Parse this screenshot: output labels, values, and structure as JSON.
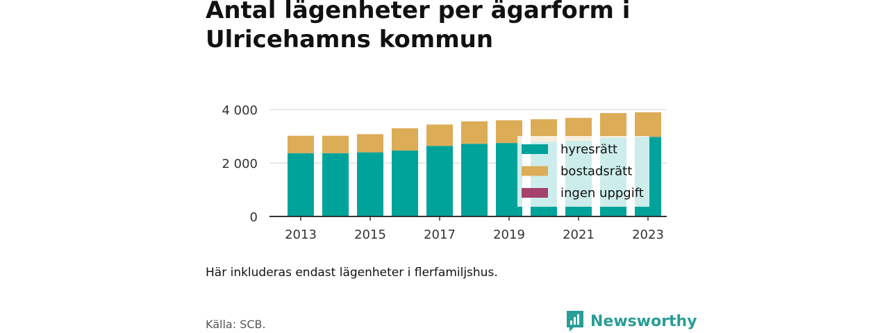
{
  "title": "Antal lägenheter per ägarform i Ulricehamns kommun",
  "note": "Här inkluderas endast lägenheter i flerfamiljshus.",
  "source": "Källa: SCB.",
  "brand": "Newsworthy",
  "colors": {
    "hyresratt": "#00a39a",
    "bostadsratt": "#dcac57",
    "ingen_uppgift": "#a3426b",
    "overlay": "#ffffff",
    "gridline": "#dddddd",
    "axis": "#333333",
    "brand": "#2a9d97"
  },
  "chart_data": {
    "type": "bar",
    "stacked": true,
    "categories": [
      "2013",
      "2014",
      "2015",
      "2016",
      "2017",
      "2018",
      "2019",
      "2020",
      "2021",
      "2022",
      "2023"
    ],
    "x_tick_labels": [
      "2013",
      "2015",
      "2017",
      "2019",
      "2021",
      "2023"
    ],
    "series": [
      {
        "name": "hyresrätt",
        "values": [
          2370,
          2370,
          2400,
          2470,
          2640,
          2720,
          2750,
          2800,
          2830,
          2950,
          2980
        ]
      },
      {
        "name": "bostadsrätt",
        "values": [
          690,
          690,
          720,
          870,
          840,
          880,
          890,
          880,
          900,
          960,
          960
        ]
      },
      {
        "name": "ingen uppgift",
        "values": [
          0,
          0,
          0,
          0,
          0,
          0,
          0,
          0,
          0,
          0,
          0
        ]
      }
    ],
    "y_ticks": [
      {
        "value": 0,
        "label": "0"
      },
      {
        "value": 2000,
        "label": "2 000"
      },
      {
        "value": 4000,
        "label": "4 000"
      }
    ],
    "ylim": [
      0,
      4000
    ],
    "grid": true,
    "legend_position": "inside-right",
    "xlabel": "",
    "ylabel": ""
  }
}
